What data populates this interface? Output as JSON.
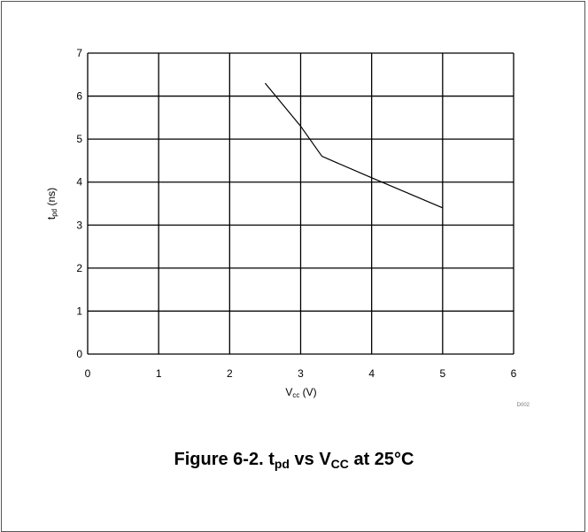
{
  "chart_data": {
    "type": "line",
    "xlabel_main": "V",
    "xlabel_sub": "cc",
    "xlabel_unit": " (V)",
    "ylabel_main": "t",
    "ylabel_sub": "pd",
    "ylabel_unit": " (ns)",
    "xlim": [
      0,
      6
    ],
    "ylim": [
      0,
      7
    ],
    "xticks": [
      "0",
      "1",
      "2",
      "3",
      "4",
      "5",
      "6"
    ],
    "yticks": [
      "0",
      "1",
      "2",
      "3",
      "4",
      "5",
      "6",
      "7"
    ],
    "grid": true,
    "series": [
      {
        "x": [
          2.5,
          3.0,
          3.3,
          4.0,
          5.0
        ],
        "y": [
          6.3,
          5.3,
          4.6,
          4.1,
          3.4
        ]
      }
    ],
    "annotation": "D002"
  },
  "caption": {
    "prefix": "Figure 6-2. t",
    "sub1": "pd",
    "middle": " vs V",
    "sub2": "CC",
    "suffix": " at 25°C"
  },
  "colors": {
    "grid": "#000000",
    "line": "#000000",
    "frame": "#555555"
  }
}
